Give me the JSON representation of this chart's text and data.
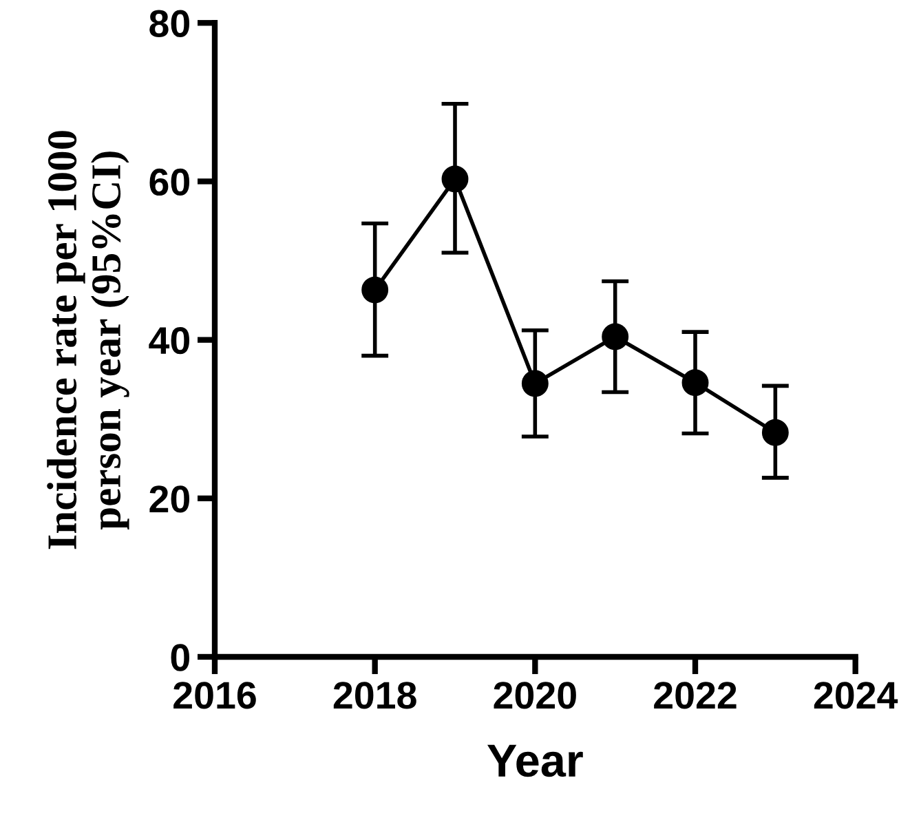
{
  "chart_data": {
    "type": "line",
    "xlabel": "Year",
    "ylabel": "Incidence rate per 1000\nperson year (95%CI)",
    "x": [
      2018,
      2019,
      2020,
      2021,
      2022,
      2023
    ],
    "series": [
      {
        "color": "#000000",
        "values": [
          46.3,
          60.3,
          34.5,
          40.4,
          34.6,
          28.3
        ],
        "errors": [
          [
            38.0,
            54.7
          ],
          [
            51.0,
            69.8
          ],
          [
            27.8,
            41.2
          ],
          [
            33.4,
            47.4
          ],
          [
            28.2,
            41.0
          ],
          [
            22.6,
            34.2
          ]
        ]
      }
    ],
    "xlim": [
      2016,
      2024
    ],
    "xticks": [
      2016,
      2018,
      2020,
      2022,
      2024
    ],
    "ylim": [
      0,
      80
    ],
    "yticks": [
      0,
      20,
      40,
      60,
      80
    ],
    "marker": "circle",
    "line_style": "solid",
    "grid": false,
    "legend": false
  }
}
